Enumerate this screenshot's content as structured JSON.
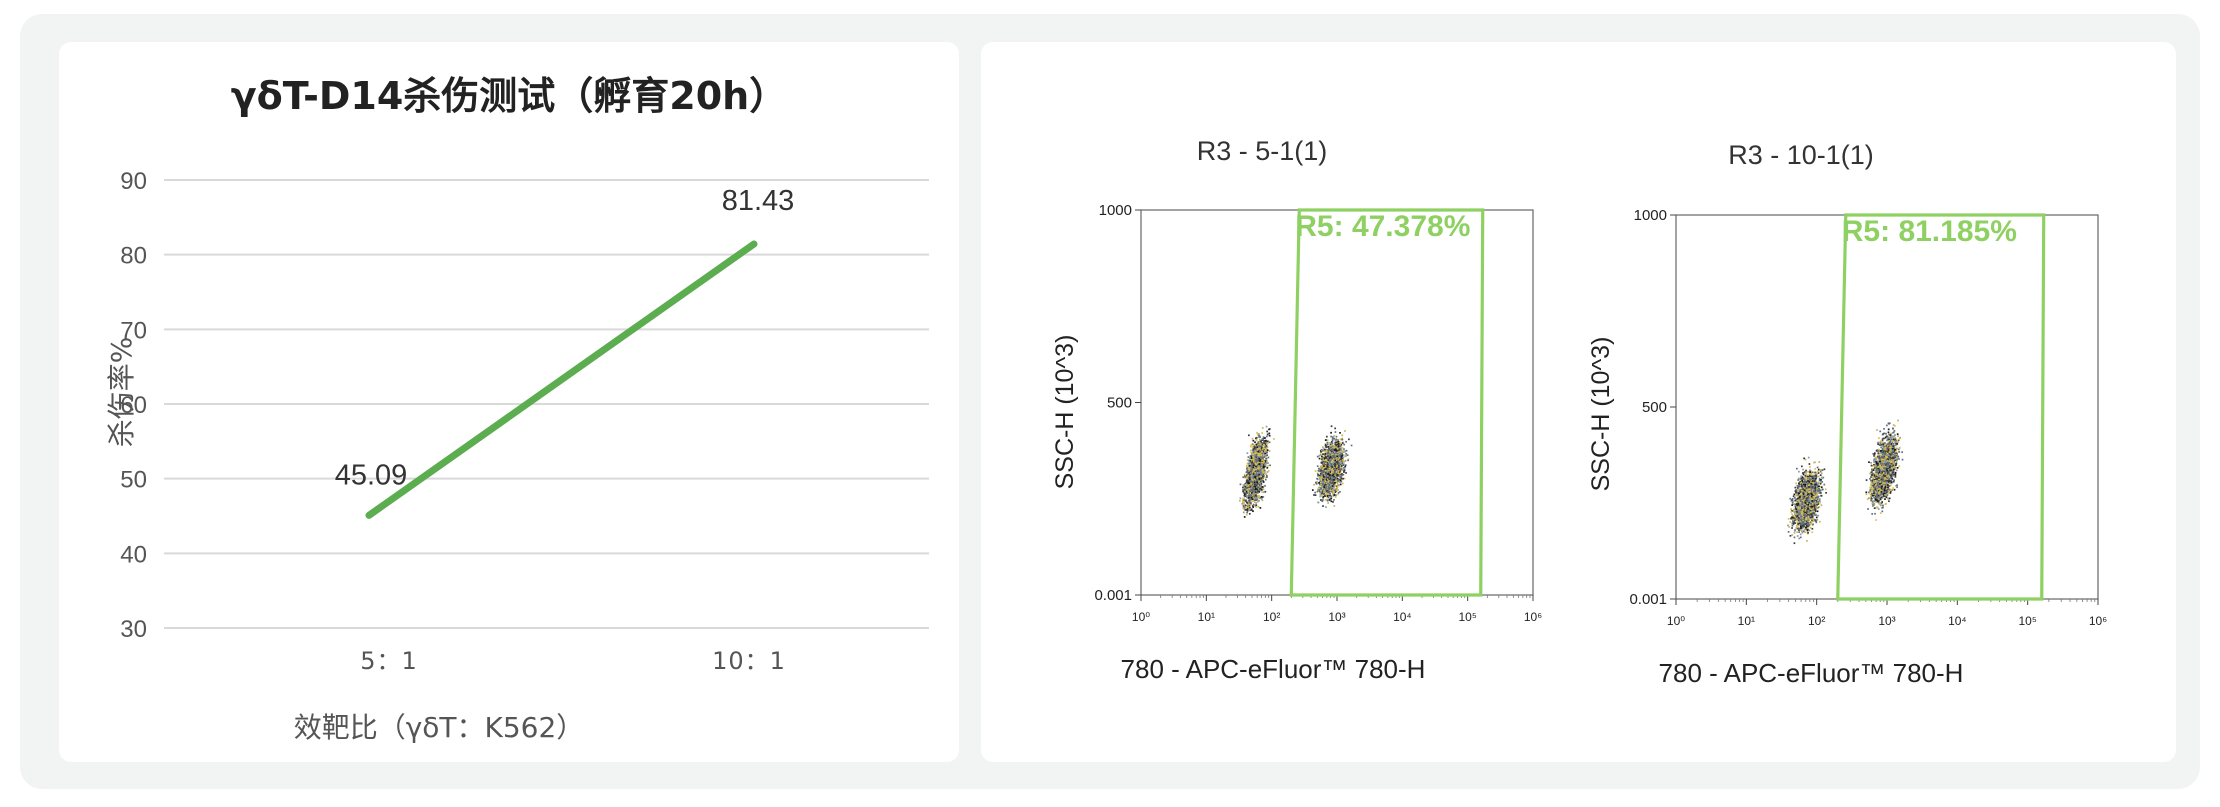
{
  "chart_data": [
    {
      "type": "line",
      "title": "γδT-D14杀伤测试（孵育20h）",
      "xlabel": "效靶比（γδT：K562）",
      "ylabel": "杀伤率%",
      "categories": [
        "5：1",
        "10：1"
      ],
      "series": [
        {
          "values": [
            45.09,
            81.43
          ]
        }
      ],
      "data_labels": [
        "45.09",
        "81.43"
      ],
      "ylim": [
        30,
        90
      ],
      "yticks": [
        "90",
        "80",
        "70",
        "60",
        "50",
        "40",
        "30"
      ],
      "grid": "horizontal",
      "colors": {
        "line": "#5cad50",
        "grid": "#d9d9d9"
      }
    },
    {
      "type": "scatter",
      "title": "R3 - 5-1(1)",
      "xlabel": "780 - APC-eFluor™ 780-H",
      "ylabel": "SSC-H (10^3)",
      "xscale": "log",
      "xlim": [
        1,
        1000000
      ],
      "ylim": [
        0.001,
        1000
      ],
      "yticks": [
        "1000",
        "500",
        "0.001"
      ],
      "xticks": [
        "10⁰",
        "10¹",
        "10²",
        "10³",
        "10⁴",
        "10⁵",
        "10⁶"
      ],
      "gate": {
        "name": "R5",
        "label": "R5: 47.378%",
        "percent": 47.378,
        "x_range_log10": [
          2.3,
          5.2
        ]
      },
      "clusters": [
        {
          "x_log10": 1.75,
          "y": 320,
          "spread_x": 0.16,
          "spread_y": 90
        },
        {
          "x_log10": 2.9,
          "y": 330,
          "spread_x": 0.2,
          "spread_y": 80
        }
      ]
    },
    {
      "type": "scatter",
      "title": "R3 - 10-1(1)",
      "xlabel": "780 - APC-eFluor™ 780-H",
      "ylabel": "SSC-H (10^3)",
      "xscale": "log",
      "xlim": [
        1,
        1000000
      ],
      "ylim": [
        0.001,
        1000
      ],
      "yticks": [
        "1000",
        "500",
        "0.001"
      ],
      "xticks": [
        "10⁰",
        "10¹",
        "10²",
        "10³",
        "10⁴",
        "10⁵",
        "10⁶"
      ],
      "gate": {
        "name": "R5",
        "label": "R5: 81.185%",
        "percent": 81.185,
        "x_range_log10": [
          2.3,
          5.2
        ]
      },
      "clusters": [
        {
          "x_log10": 1.85,
          "y": 260,
          "spread_x": 0.2,
          "spread_y": 80
        },
        {
          "x_log10": 2.95,
          "y": 340,
          "spread_x": 0.18,
          "spread_y": 90
        }
      ]
    }
  ]
}
